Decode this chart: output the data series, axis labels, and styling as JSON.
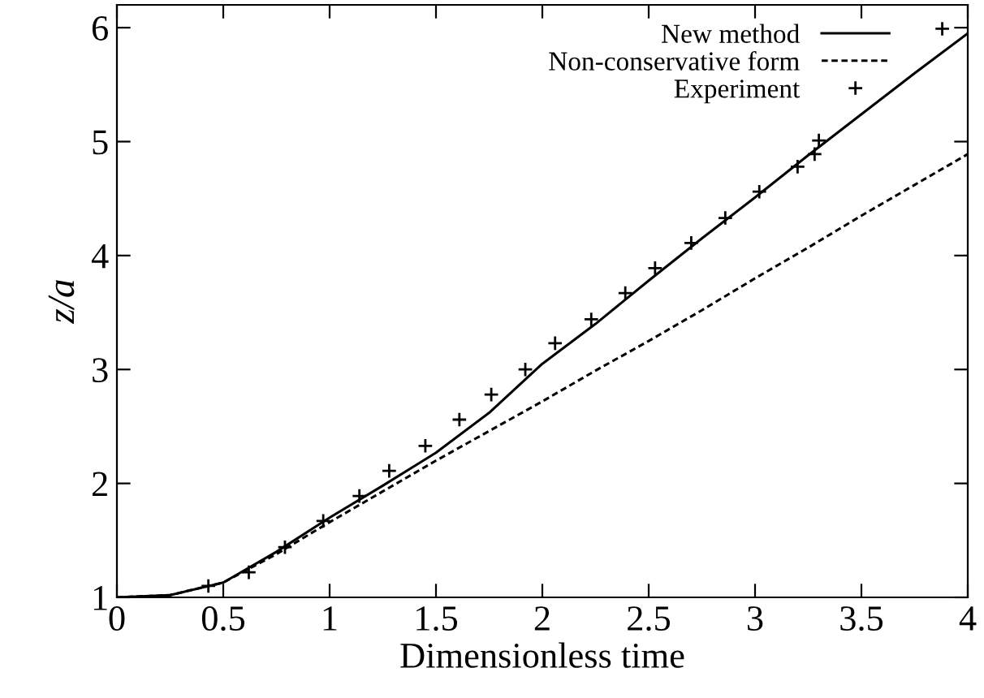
{
  "chart_data": {
    "type": "line",
    "xlabel": "Dimensionless time",
    "ylabel": "z/a",
    "xlim": [
      0,
      4
    ],
    "ylim": [
      1,
      6.2
    ],
    "xticks": [
      0,
      0.5,
      1,
      1.5,
      2,
      2.5,
      3,
      3.5,
      4
    ],
    "yticks": [
      1,
      2,
      3,
      4,
      5,
      6
    ],
    "legend": "top right",
    "grid": false,
    "series": [
      {
        "name": "New method",
        "color": "#000000",
        "line_style": "solid",
        "x": [
          0,
          0.25,
          0.5,
          0.75,
          1,
          1.25,
          1.5,
          1.75,
          2,
          2.25,
          2.5,
          2.75,
          3,
          3.25,
          3.5,
          3.75,
          4
        ],
        "values": [
          1,
          1.02,
          1.13,
          1.4,
          1.7,
          1.98,
          2.27,
          2.62,
          3.05,
          3.4,
          3.78,
          4.15,
          4.51,
          4.88,
          5.24,
          5.6,
          5.95
        ]
      },
      {
        "name": "Non-conservative form",
        "color": "#000000",
        "line_style": "dashed",
        "x": [
          0,
          0.25,
          0.5,
          0.75,
          1,
          1.25,
          1.5,
          1.75,
          2,
          2.25,
          2.5,
          2.75,
          3,
          3.25,
          3.5,
          3.75,
          4
        ],
        "values": [
          1,
          1.02,
          1.13,
          1.38,
          1.66,
          1.93,
          2.2,
          2.46,
          2.72,
          2.99,
          3.25,
          3.52,
          3.8,
          4.07,
          4.35,
          4.62,
          4.89
        ]
      },
      {
        "name": "Experiment",
        "type": "scatter",
        "color": "#000000",
        "marker": "cross",
        "x": [
          0.43,
          0.62,
          0.79,
          0.97,
          1.14,
          1.28,
          1.45,
          1.61,
          1.76,
          1.92,
          2.06,
          2.23,
          2.39,
          2.53,
          2.7,
          2.86,
          3.02,
          3.2,
          3.28,
          3.3,
          3.88
        ],
        "values": [
          1.1,
          1.22,
          1.44,
          1.67,
          1.89,
          2.11,
          2.33,
          2.56,
          2.78,
          3.0,
          3.23,
          3.44,
          3.67,
          3.89,
          4.11,
          4.33,
          4.56,
          4.78,
          4.89,
          5.01,
          5.99
        ]
      }
    ]
  }
}
